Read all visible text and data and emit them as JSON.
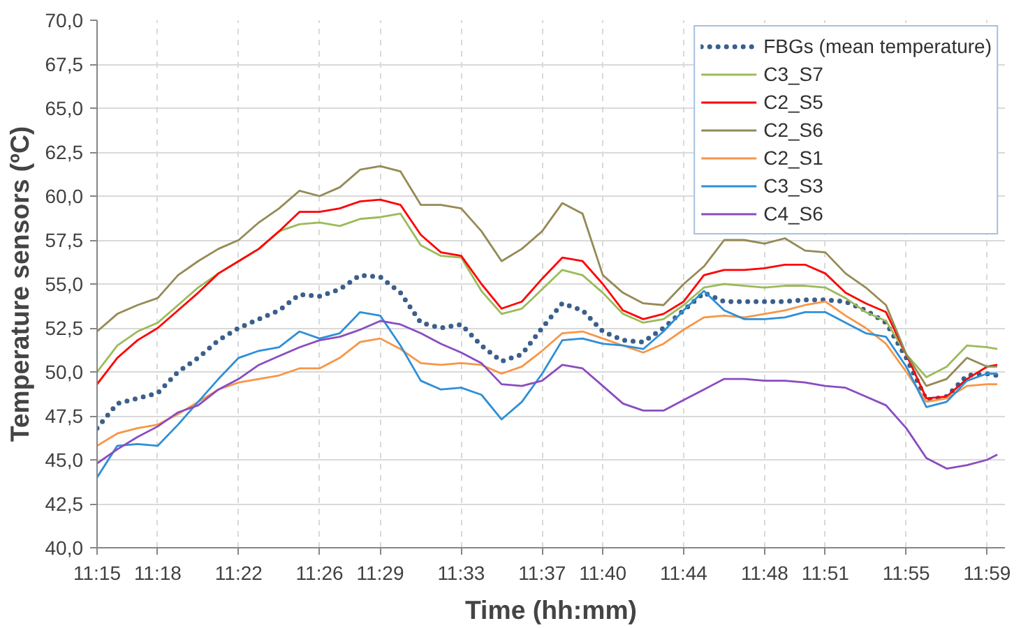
{
  "chart_data": {
    "type": "line",
    "xlabel": "Time (hh:mm)",
    "ylabel": "Temperature sensors (ºC)",
    "x": [
      11.25,
      11.2667,
      11.2833,
      11.3,
      11.3167,
      11.3333,
      11.35,
      11.3667,
      11.3833,
      11.4,
      11.4167,
      11.4333,
      11.45,
      11.4667,
      11.4833,
      11.5,
      11.5167,
      11.5333,
      11.55,
      11.5667,
      11.5833,
      11.6,
      11.6167,
      11.6333,
      11.65,
      11.6667,
      11.6833,
      11.7,
      11.7167,
      11.7333,
      11.75,
      11.7667,
      11.7833,
      11.8,
      11.8167,
      11.8333,
      11.85,
      11.8667,
      11.8833,
      11.9,
      11.9167,
      11.9333,
      11.95,
      11.9667,
      11.9833,
      11.9917
    ],
    "series": [
      {
        "name": "FBGs (mean temperature)",
        "color": "#3b5f8c",
        "line_style": "dotted",
        "values": [
          46.8,
          48.2,
          48.5,
          48.8,
          50.0,
          50.8,
          51.8,
          52.5,
          53.0,
          53.5,
          54.4,
          54.3,
          54.7,
          55.5,
          55.4,
          54.5,
          52.8,
          52.5,
          52.7,
          51.5,
          50.6,
          51.0,
          52.5,
          53.9,
          53.5,
          52.3,
          51.8,
          51.7,
          52.5,
          53.5,
          54.5,
          54.0,
          54.0,
          54.0,
          54.0,
          54.1,
          54.1,
          54.0,
          53.5,
          52.8,
          50.8,
          48.4,
          48.6,
          49.8,
          49.9,
          49.8
        ]
      },
      {
        "name": "C3_S7",
        "color": "#9bbb59",
        "line_style": "solid",
        "values": [
          50.0,
          51.5,
          52.3,
          52.8,
          53.8,
          54.8,
          55.6,
          56.3,
          57.0,
          58.0,
          58.4,
          58.5,
          58.3,
          58.7,
          58.8,
          59.0,
          57.2,
          56.6,
          56.5,
          54.6,
          53.3,
          53.6,
          54.7,
          55.8,
          55.5,
          54.5,
          53.3,
          52.8,
          53.0,
          53.8,
          54.8,
          55.0,
          54.9,
          54.8,
          54.9,
          54.9,
          54.8,
          54.2,
          53.4,
          52.9,
          51.0,
          49.7,
          50.3,
          51.5,
          51.4,
          51.3
        ]
      },
      {
        "name": "C2_S5",
        "color": "#ff0000",
        "line_style": "solid",
        "values": [
          49.3,
          50.8,
          51.8,
          52.5,
          53.5,
          54.5,
          55.6,
          56.3,
          57.0,
          58.0,
          59.1,
          59.1,
          59.3,
          59.7,
          59.8,
          59.5,
          57.8,
          56.8,
          56.6,
          55.0,
          53.6,
          54.0,
          55.3,
          56.5,
          56.3,
          55.0,
          53.5,
          53.0,
          53.3,
          54.0,
          55.5,
          55.8,
          55.8,
          55.9,
          56.1,
          56.1,
          55.6,
          54.5,
          53.9,
          53.4,
          51.0,
          48.5,
          48.6,
          49.6,
          50.3,
          50.4
        ]
      },
      {
        "name": "C2_S6",
        "color": "#948a54",
        "line_style": "solid",
        "values": [
          52.3,
          53.3,
          53.8,
          54.2,
          55.5,
          56.3,
          57.0,
          57.5,
          58.5,
          59.3,
          60.3,
          60.0,
          60.5,
          61.5,
          61.7,
          61.4,
          59.5,
          59.5,
          59.3,
          58.0,
          56.3,
          57.0,
          58.0,
          59.6,
          59.0,
          55.5,
          54.5,
          53.9,
          53.8,
          55.0,
          56.0,
          57.5,
          57.5,
          57.3,
          57.6,
          56.9,
          56.8,
          55.6,
          54.8,
          53.8,
          51.0,
          49.2,
          49.6,
          50.8,
          50.3,
          50.3
        ]
      },
      {
        "name": "C2_S1",
        "color": "#f79646",
        "line_style": "solid",
        "values": [
          45.8,
          46.5,
          46.8,
          47.0,
          47.6,
          48.3,
          49.0,
          49.4,
          49.6,
          49.8,
          50.2,
          50.2,
          50.8,
          51.7,
          51.9,
          51.3,
          50.5,
          50.4,
          50.5,
          50.4,
          49.9,
          50.3,
          51.2,
          52.2,
          52.3,
          51.9,
          51.5,
          51.1,
          51.6,
          52.4,
          53.1,
          53.2,
          53.1,
          53.3,
          53.5,
          53.8,
          54.0,
          53.2,
          52.5,
          51.6,
          50.0,
          48.3,
          48.5,
          49.2,
          49.3,
          49.3
        ]
      },
      {
        "name": "C3_S3",
        "color": "#2e8fd8",
        "line_style": "solid",
        "values": [
          44.0,
          45.8,
          45.9,
          45.8,
          47.0,
          48.3,
          49.6,
          50.8,
          51.2,
          51.4,
          52.3,
          51.9,
          52.2,
          53.4,
          53.2,
          51.5,
          49.5,
          49.0,
          49.1,
          48.7,
          47.3,
          48.3,
          49.9,
          51.8,
          51.9,
          51.6,
          51.5,
          51.3,
          52.3,
          53.5,
          54.6,
          53.5,
          53.0,
          53.0,
          53.1,
          53.4,
          53.4,
          52.8,
          52.2,
          52.0,
          50.3,
          48.0,
          48.3,
          49.5,
          49.9,
          49.9
        ]
      },
      {
        "name": "C4_S6",
        "color": "#8a4cc0",
        "line_style": "solid",
        "values": [
          44.8,
          45.6,
          46.3,
          46.9,
          47.7,
          48.1,
          49.0,
          49.6,
          50.4,
          50.9,
          51.4,
          51.8,
          52.0,
          52.4,
          52.9,
          52.7,
          52.2,
          51.6,
          51.1,
          50.5,
          49.3,
          49.2,
          49.5,
          50.4,
          50.2,
          49.2,
          48.2,
          47.8,
          47.8,
          48.4,
          49.0,
          49.6,
          49.6,
          49.5,
          49.5,
          49.4,
          49.2,
          49.1,
          48.6,
          48.1,
          46.8,
          45.1,
          44.5,
          44.7,
          45.0,
          45.3
        ]
      }
    ],
    "xlim": [
      11.25,
      11.998
    ],
    "xticks": [
      {
        "value": 11.25,
        "label": "11:15"
      },
      {
        "value": 11.3,
        "label": "11:18"
      },
      {
        "value": 11.3667,
        "label": "11:22"
      },
      {
        "value": 11.4333,
        "label": "11:26"
      },
      {
        "value": 11.4833,
        "label": "11:29"
      },
      {
        "value": 11.55,
        "label": "11:33"
      },
      {
        "value": 11.6167,
        "label": "11:37"
      },
      {
        "value": 11.6667,
        "label": "11:40"
      },
      {
        "value": 11.7333,
        "label": "11:44"
      },
      {
        "value": 11.8,
        "label": "11:48"
      },
      {
        "value": 11.85,
        "label": "11:51"
      },
      {
        "value": 11.9167,
        "label": "11:55"
      },
      {
        "value": 11.9833,
        "label": "11:59"
      }
    ],
    "ylim": [
      40,
      70
    ],
    "yticks": [
      {
        "value": 40,
        "label": "40,0"
      },
      {
        "value": 42.5,
        "label": "42,5"
      },
      {
        "value": 45,
        "label": "45,0"
      },
      {
        "value": 47.5,
        "label": "47,5"
      },
      {
        "value": 50,
        "label": "50,0"
      },
      {
        "value": 52.5,
        "label": "52,5"
      },
      {
        "value": 55,
        "label": "55,0"
      },
      {
        "value": 57.5,
        "label": "57,5"
      },
      {
        "value": 60,
        "label": "60,0"
      },
      {
        "value": 62.5,
        "label": "62,5"
      },
      {
        "value": 65,
        "label": "65,0"
      },
      {
        "value": 67.5,
        "label": "67,5"
      },
      {
        "value": 70,
        "label": "70,0"
      }
    ],
    "grid": true,
    "legend": "top right"
  }
}
